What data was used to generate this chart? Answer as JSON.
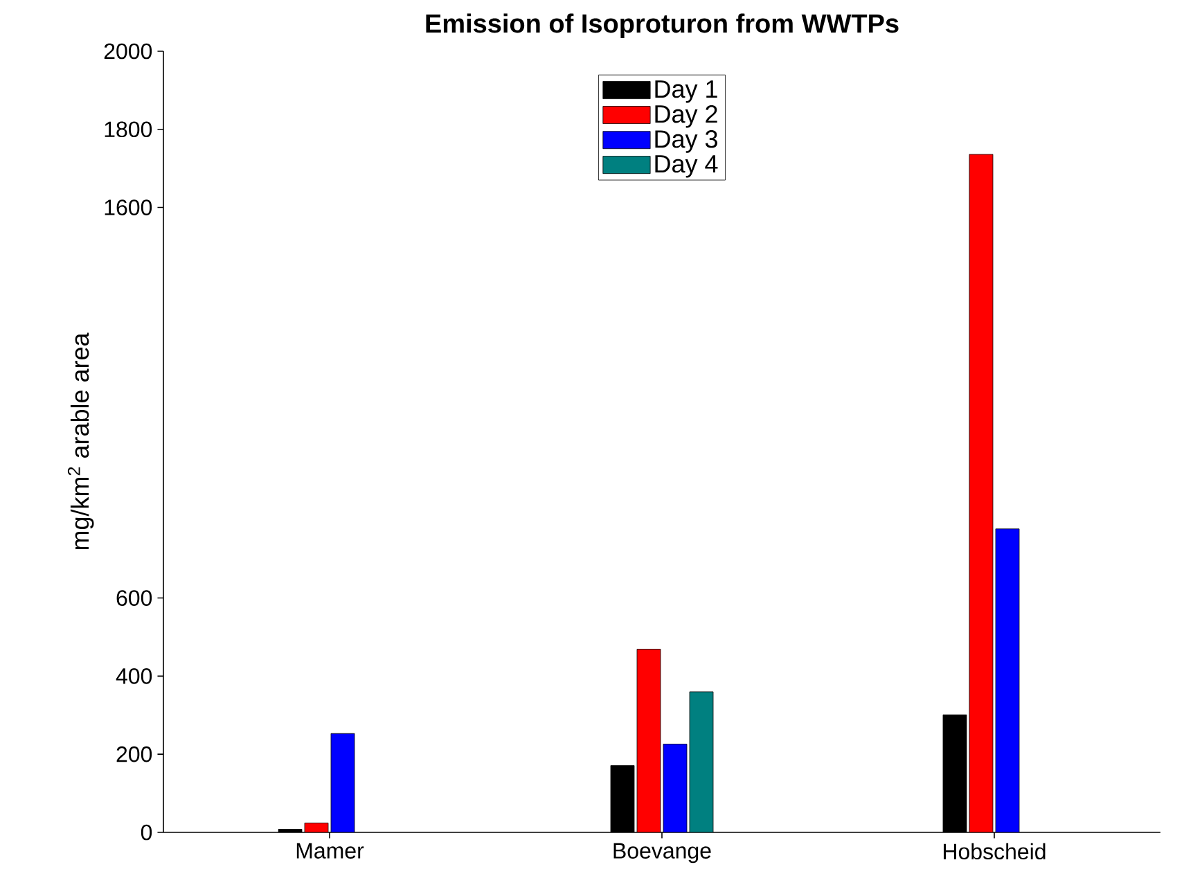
{
  "chart_data": {
    "type": "bar",
    "title": "Emission of Isoproturon from WWTPs",
    "ylabel": "mg/km$^{2}$ arable area",
    "categories": [
      "Mamer",
      "Boevange",
      "Hobscheid"
    ],
    "series": [
      {
        "name": "Day 1",
        "color": "#000000",
        "values": [
          8,
          171,
          301
        ]
      },
      {
        "name": "Day 2",
        "color": "#ff0000",
        "values": [
          24,
          469,
          1736
        ]
      },
      {
        "name": "Day 3",
        "color": "#0000ff",
        "values": [
          253,
          226,
          777
        ]
      },
      {
        "name": "Day 4",
        "color": "#008080",
        "values": [
          null,
          360,
          null
        ]
      }
    ],
    "ylim": [
      0,
      2000
    ],
    "yticks": [
      0,
      200,
      400,
      600,
      1600,
      1800,
      2000
    ],
    "legend": "top",
    "grid": false
  }
}
